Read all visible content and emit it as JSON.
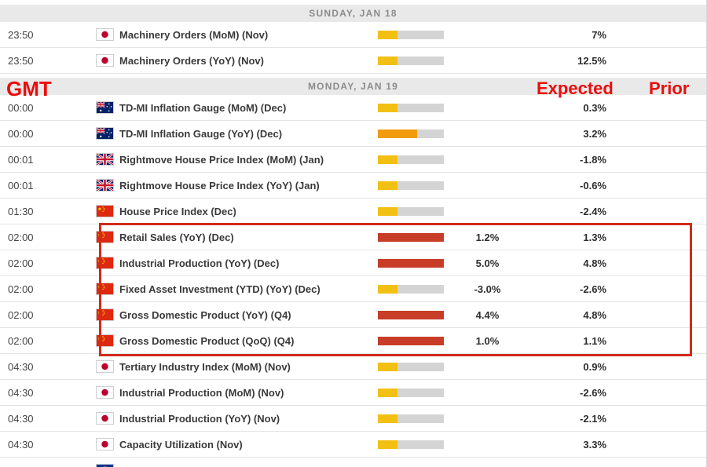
{
  "annotations": {
    "gmt": "GMT",
    "expected": "Expected",
    "prior": "Prior"
  },
  "colors": {
    "importance_low": "#f2c013",
    "importance_medium": "#f29b0d",
    "importance_high": "#c83d28",
    "bar_track": "#d4d4d4",
    "annotation": "#e90e0e",
    "highlight_border": "#d22a1a"
  },
  "rows": [
    {
      "type": "section",
      "label": "SUNDAY, JAN 18"
    },
    {
      "type": "event",
      "time": "23:50",
      "country": "japan",
      "event": "Machinery Orders (MoM) (Nov)",
      "importance": "low",
      "expected": "",
      "prior": "7%",
      "highlighted": false
    },
    {
      "type": "event",
      "time": "23:50",
      "country": "japan",
      "event": "Machinery Orders (YoY) (Nov)",
      "importance": "low",
      "expected": "",
      "prior": "12.5%",
      "highlighted": false
    },
    {
      "type": "section",
      "label": "MONDAY, JAN 19"
    },
    {
      "type": "event",
      "time": "00:00",
      "country": "australia",
      "event": "TD-MI Inflation Gauge (MoM) (Dec)",
      "importance": "low",
      "expected": "",
      "prior": "0.3%",
      "highlighted": false
    },
    {
      "type": "event",
      "time": "00:00",
      "country": "australia",
      "event": "TD-MI Inflation Gauge (YoY) (Dec)",
      "importance": "medium",
      "expected": "",
      "prior": "3.2%",
      "highlighted": false
    },
    {
      "type": "event",
      "time": "00:01",
      "country": "uk",
      "event": "Rightmove House Price Index (MoM) (Jan)",
      "importance": "low",
      "expected": "",
      "prior": "-1.8%",
      "highlighted": false
    },
    {
      "type": "event",
      "time": "00:01",
      "country": "uk",
      "event": "Rightmove House Price Index (YoY) (Jan)",
      "importance": "low",
      "expected": "",
      "prior": "-0.6%",
      "highlighted": false
    },
    {
      "type": "event",
      "time": "01:30",
      "country": "china",
      "event": "House Price Index (Dec)",
      "importance": "low",
      "expected": "",
      "prior": "-2.4%",
      "highlighted": false
    },
    {
      "type": "event",
      "time": "02:00",
      "country": "china",
      "event": "Retail Sales (YoY) (Dec)",
      "importance": "high",
      "expected": "1.2%",
      "prior": "1.3%",
      "highlighted": true
    },
    {
      "type": "event",
      "time": "02:00",
      "country": "china",
      "event": "Industrial Production (YoY) (Dec)",
      "importance": "high",
      "expected": "5.0%",
      "prior": "4.8%",
      "highlighted": true
    },
    {
      "type": "event",
      "time": "02:00",
      "country": "china",
      "event": "Fixed Asset Investment (YTD) (YoY) (Dec)",
      "importance": "low",
      "expected": "-3.0%",
      "prior": "-2.6%",
      "highlighted": true
    },
    {
      "type": "event",
      "time": "02:00",
      "country": "china",
      "event": "Gross Domestic Product (YoY) (Q4)",
      "importance": "high",
      "expected": "4.4%",
      "prior": "4.8%",
      "highlighted": true
    },
    {
      "type": "event",
      "time": "02:00",
      "country": "china",
      "event": "Gross Domestic Product (QoQ) (Q4)",
      "importance": "high",
      "expected": "1.0%",
      "prior": "1.1%",
      "highlighted": true
    },
    {
      "type": "event",
      "time": "04:30",
      "country": "japan",
      "event": "Tertiary Industry Index (MoM) (Nov)",
      "importance": "low",
      "expected": "",
      "prior": "0.9%",
      "highlighted": false
    },
    {
      "type": "event",
      "time": "04:30",
      "country": "japan",
      "event": "Industrial Production (MoM) (Nov)",
      "importance": "low",
      "expected": "",
      "prior": "-2.6%",
      "highlighted": false
    },
    {
      "type": "event",
      "time": "04:30",
      "country": "japan",
      "event": "Industrial Production (YoY) (Nov)",
      "importance": "low",
      "expected": "",
      "prior": "-2.1%",
      "highlighted": false
    },
    {
      "type": "event",
      "time": "04:30",
      "country": "japan",
      "event": "Capacity Utilization (Nov)",
      "importance": "low",
      "expected": "",
      "prior": "3.3%",
      "highlighted": false
    },
    {
      "type": "event",
      "time": "",
      "country": "eu",
      "event": "",
      "importance": "",
      "expected": "",
      "prior": "",
      "highlighted": false
    }
  ]
}
